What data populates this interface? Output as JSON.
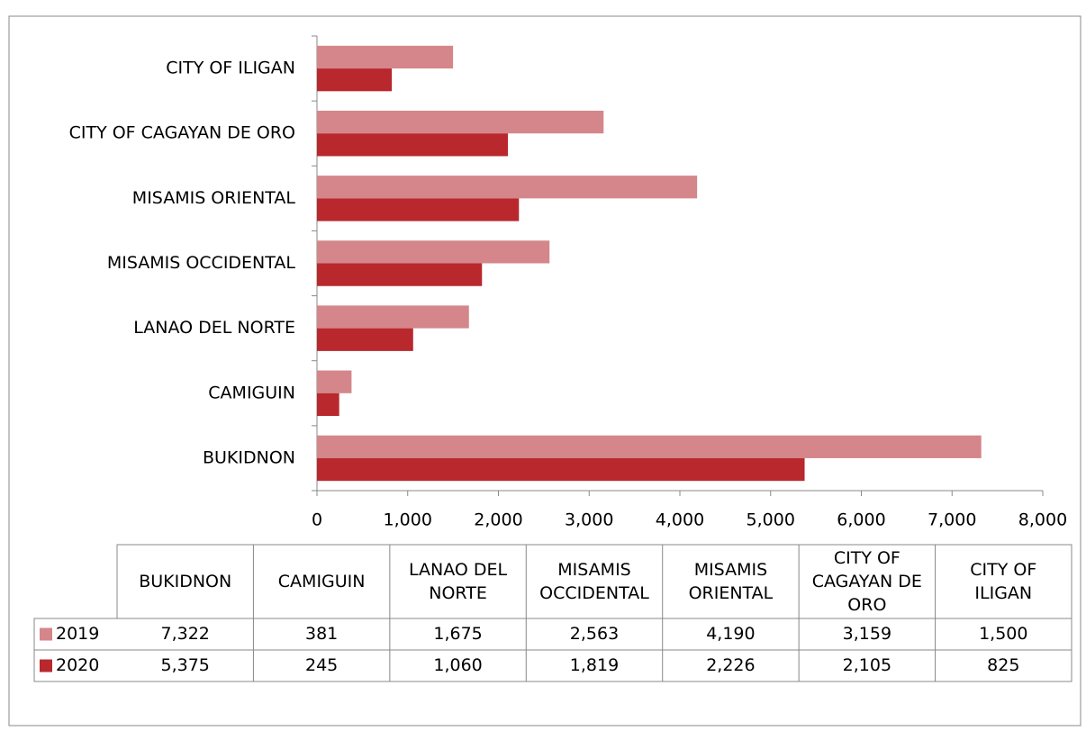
{
  "chart_data": {
    "type": "bar",
    "orientation": "horizontal",
    "categories": [
      "BUKIDNON",
      "CAMIGUIN",
      "LANAO DEL NORTE",
      "MISAMIS OCCIDENTAL",
      "MISAMIS ORIENTAL",
      "CITY OF CAGAYAN DE ORO",
      "CITY OF ILIGAN"
    ],
    "series": [
      {
        "name": "2019",
        "color": "#d4868a",
        "values": [
          7322,
          381,
          1675,
          2563,
          4190,
          3159,
          1500
        ],
        "value_labels": [
          "7,322",
          "381",
          "1,675",
          "2,563",
          "4,190",
          "3,159",
          "1,500"
        ]
      },
      {
        "name": "2020",
        "color": "#b8282d",
        "values": [
          5375,
          245,
          1060,
          1819,
          2226,
          2105,
          825
        ],
        "value_labels": [
          "5,375",
          "245",
          "1,060",
          "1,819",
          "2,226",
          "2,105",
          "825"
        ]
      }
    ],
    "xlim": [
      0,
      8000
    ],
    "xticks": [
      0,
      {
        "value": 1000,
        "label": "1,000"
      },
      {
        "value": 2000,
        "label": "2,000"
      },
      {
        "value": 3000,
        "label": "3,000"
      },
      {
        "value": 4000,
        "label": "4,000"
      },
      {
        "value": 5000,
        "label": "5,000"
      },
      {
        "value": 6000,
        "label": "6,000"
      },
      {
        "value": 7000,
        "label": "7,000"
      },
      {
        "value": 8000,
        "label": "8,000"
      }
    ],
    "grid": false,
    "data_table": true
  }
}
